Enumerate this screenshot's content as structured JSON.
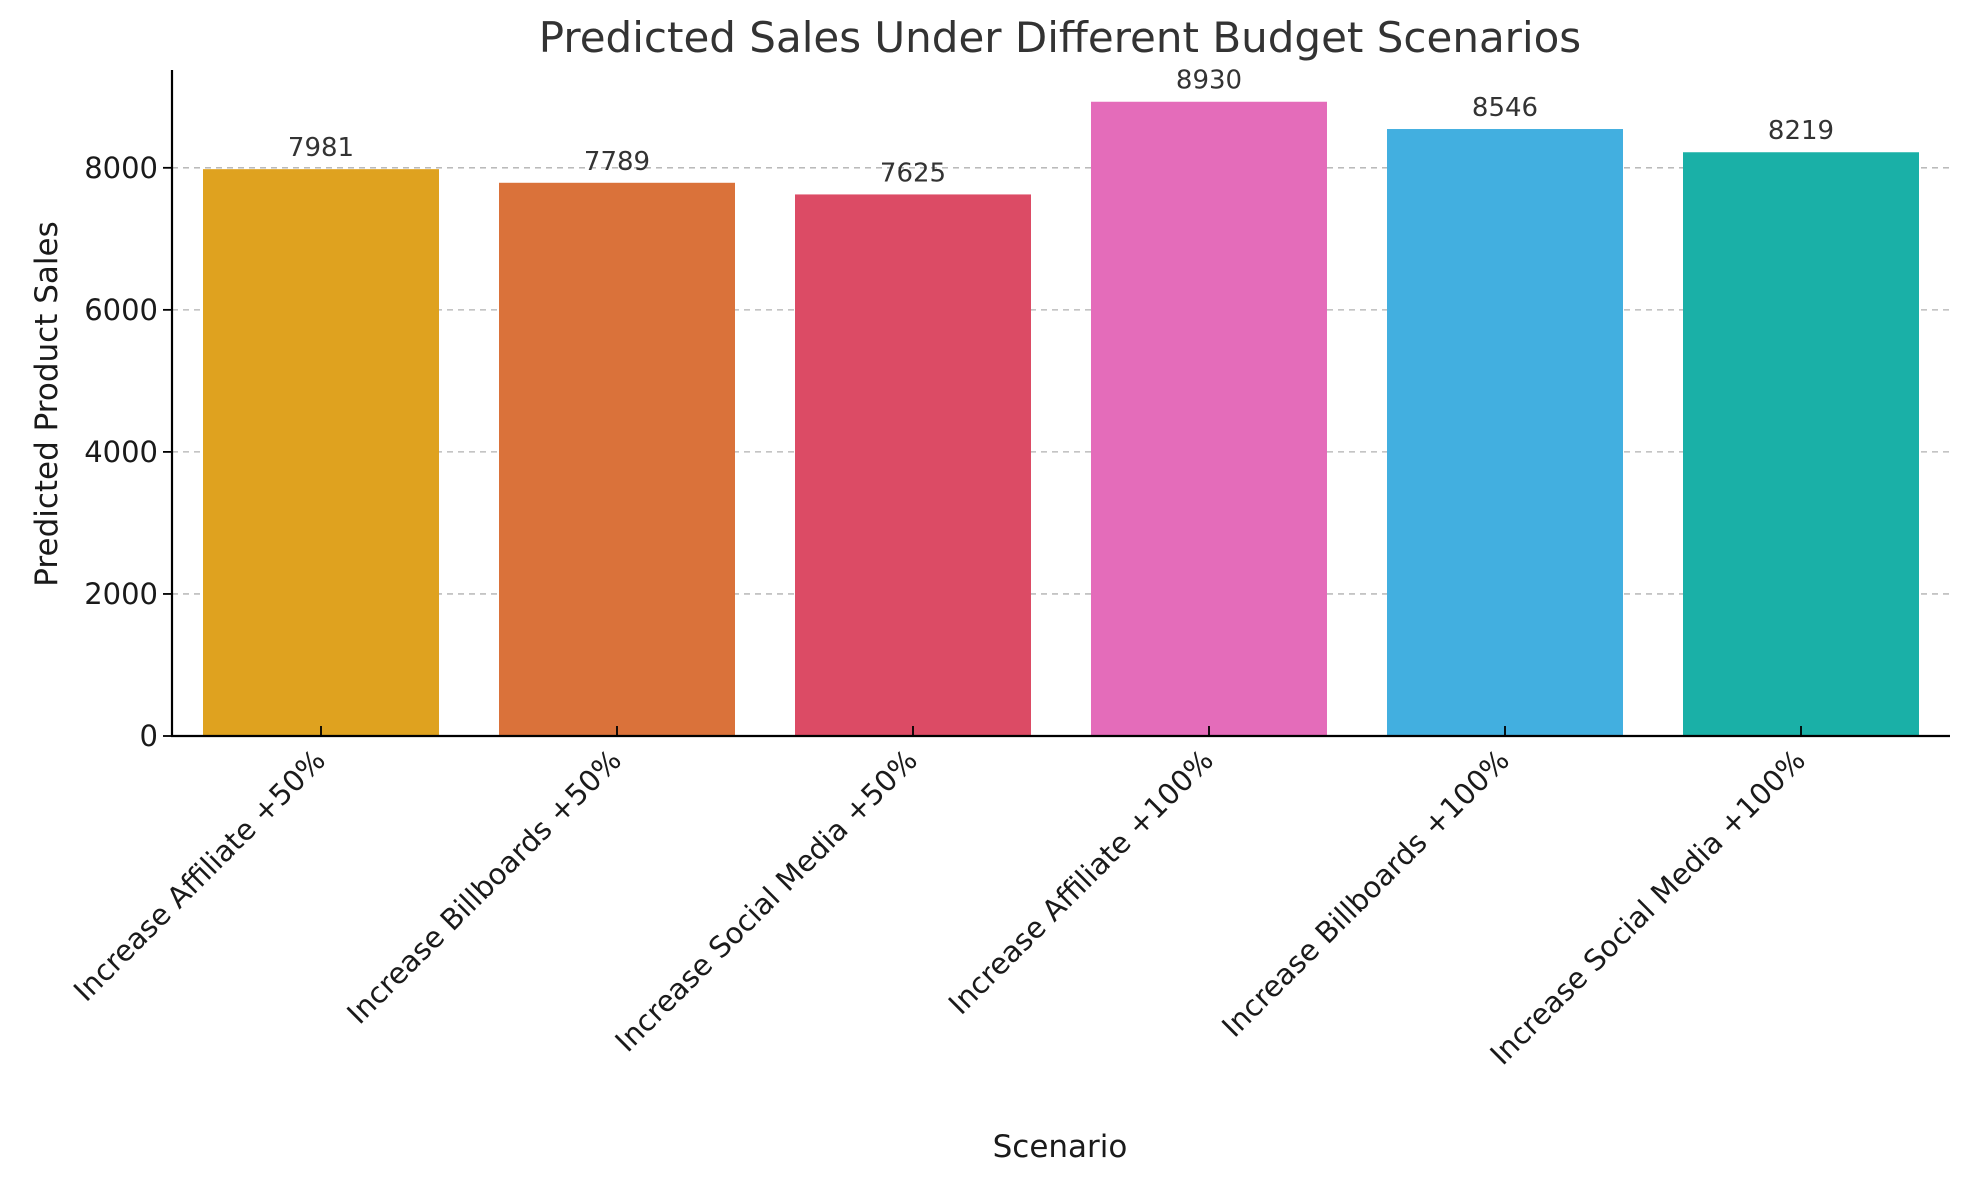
{
  "chart_data": {
    "type": "bar",
    "title": "Predicted Sales Under Different Budget Scenarios",
    "xlabel": "Scenario",
    "ylabel": "Predicted Product Sales",
    "categories": [
      "Increase Affiliate +50%",
      "Increase Billboards +50%",
      "Increase Social Media +50%",
      "Increase Affiliate +100%",
      "Increase Billboards +100%",
      "Increase Social Media +100%"
    ],
    "values": [
      7981,
      7789,
      7625,
      8930,
      8546,
      8219
    ],
    "data_labels": [
      "7981",
      "7789",
      "7625",
      "8930",
      "8546",
      "8219"
    ],
    "colors": [
      "#DFA21F",
      "#DA723A",
      "#DC4B65",
      "#E46CBA",
      "#42AFE0",
      "#1AB0A7"
    ],
    "yticks": [
      0,
      2000,
      4000,
      6000,
      8000
    ],
    "ytick_labels": [
      "0",
      "2000",
      "4000",
      "6000",
      "8000"
    ],
    "ylim": [
      0,
      9377
    ],
    "grid": true,
    "grid_axis": "y",
    "legend": false
  }
}
